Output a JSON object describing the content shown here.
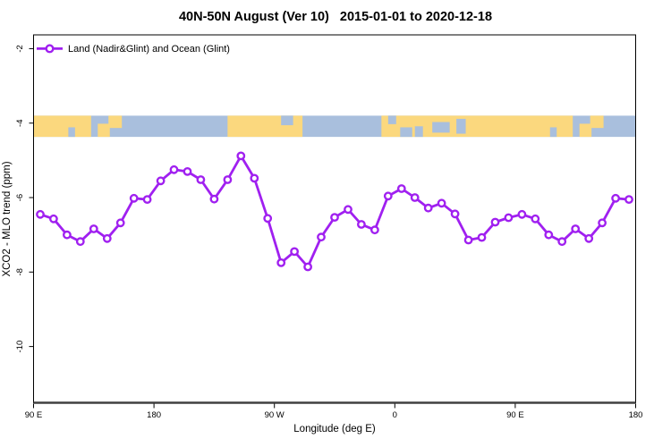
{
  "title": "40N-50N August (Ver 10)   2015-01-01 to 2020-12-18",
  "legend": {
    "label": "Land (Nadir&Glint) and Ocean (Glint)"
  },
  "axes": {
    "x_label": "Longitude (deg E)",
    "y_label": "XCO2 - MLO trend (ppm)"
  },
  "colors": {
    "series": "#A020F0",
    "marker_fill": "#ffffff",
    "land": "#FBD87E",
    "ocean": "#A9BFDD",
    "axis": "#000000",
    "bottom_axis": "#404040"
  },
  "chart_data": {
    "type": "line",
    "title": "40N-50N August (Ver 10)   2015-01-01 to 2020-12-18",
    "xlabel": "Longitude (deg E)",
    "ylabel": "XCO2 - MLO trend (ppm)",
    "legend": [
      "Land (Nadir&Glint) and Ocean (Glint)"
    ],
    "legend_position": "top-left",
    "grid": false,
    "xlim": [
      90,
      540
    ],
    "ylim": [
      -11.51,
      -1.63
    ],
    "x_ticks": [
      {
        "pos": 90,
        "label": "90 E"
      },
      {
        "pos": 180,
        "label": "180"
      },
      {
        "pos": 270,
        "label": "90 W"
      },
      {
        "pos": 360,
        "label": "0"
      },
      {
        "pos": 450,
        "label": "90 E"
      },
      {
        "pos": 540,
        "label": "180"
      }
    ],
    "y_ticks": [
      {
        "pos": -2,
        "label": "-2"
      },
      {
        "pos": -4,
        "label": "-4"
      },
      {
        "pos": -6,
        "label": "-6"
      },
      {
        "pos": -8,
        "label": "-8"
      },
      {
        "pos": -10,
        "label": "-10"
      }
    ],
    "x_deg_east_continuous": [
      95,
      105,
      115,
      125,
      135,
      145,
      155,
      165,
      175,
      185,
      195,
      205,
      215,
      225,
      235,
      245,
      255,
      265,
      275,
      285,
      295,
      305,
      315,
      325,
      335,
      345,
      355,
      365,
      375,
      385,
      395,
      405,
      415,
      425,
      435,
      445,
      455,
      465,
      475,
      485,
      495,
      505,
      515,
      525,
      535
    ],
    "values": [
      -6.45,
      -6.57,
      -7.0,
      -7.18,
      -6.84,
      -7.1,
      -6.68,
      -6.02,
      -6.05,
      -5.55,
      -5.25,
      -5.3,
      -5.52,
      -6.04,
      -5.52,
      -4.88,
      -5.48,
      -6.56,
      -7.75,
      -7.45,
      -7.86,
      -7.06,
      -6.53,
      -6.32,
      -6.72,
      -6.87,
      -5.96,
      -5.76,
      -6.0,
      -6.28,
      -6.15,
      -6.44,
      -7.14,
      -7.07,
      -6.66,
      -6.54,
      -6.45,
      -6.57,
      -7.0,
      -7.18,
      -6.84,
      -7.1,
      -6.68,
      -6.02,
      -6.05
    ],
    "map_strip": {
      "value_top": -3.8,
      "value_bottom": -4.37,
      "segments": [
        {
          "from": 90,
          "to": 133,
          "type": "land"
        },
        {
          "from": 116,
          "to": 121,
          "type": "ocean",
          "top": 0.55,
          "h": 0.45
        },
        {
          "from": 138,
          "to": 147,
          "type": "land",
          "top": 0.38,
          "h": 0.62
        },
        {
          "from": 146,
          "to": 156,
          "type": "land",
          "top": 0.0,
          "h": 0.58
        },
        {
          "from": 235,
          "to": 291,
          "type": "land"
        },
        {
          "from": 275,
          "to": 284,
          "type": "ocean",
          "top": 0.0,
          "h": 0.45
        },
        {
          "from": 350,
          "to": 493,
          "type": "land"
        },
        {
          "from": 355,
          "to": 361,
          "type": "ocean",
          "top": 0.0,
          "h": 0.4
        },
        {
          "from": 364,
          "to": 373,
          "type": "ocean",
          "top": 0.55,
          "h": 0.45
        },
        {
          "from": 375,
          "to": 381,
          "type": "ocean",
          "top": 0.5,
          "h": 0.5
        },
        {
          "from": 388,
          "to": 401,
          "type": "ocean",
          "top": 0.3,
          "h": 0.5
        },
        {
          "from": 406,
          "to": 413,
          "type": "ocean",
          "top": 0.15,
          "h": 0.7
        },
        {
          "from": 476,
          "to": 481,
          "type": "ocean",
          "top": 0.55,
          "h": 0.45
        },
        {
          "from": 498,
          "to": 507,
          "type": "land",
          "top": 0.38,
          "h": 0.62
        },
        {
          "from": 506,
          "to": 516,
          "type": "land",
          "top": 0.0,
          "h": 0.58
        }
      ]
    }
  }
}
